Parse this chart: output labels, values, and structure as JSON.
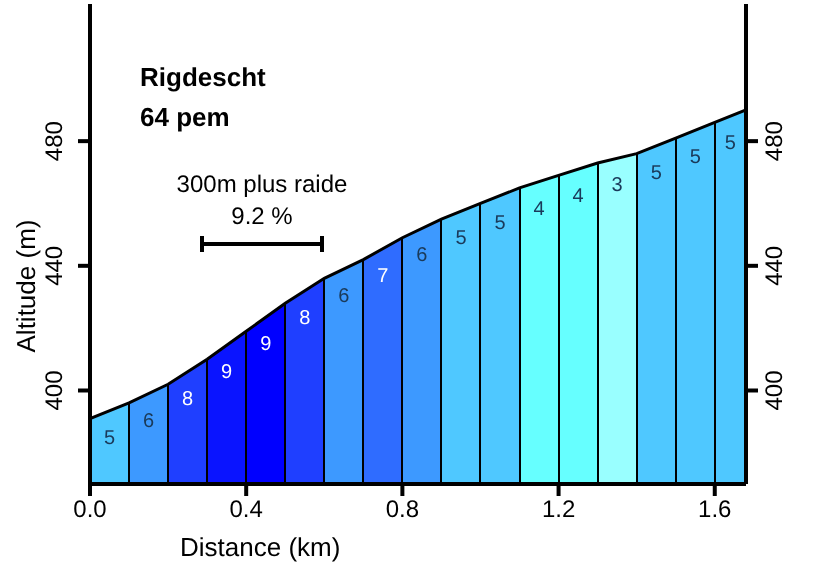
{
  "chart_data": {
    "type": "area",
    "title": "Rigdescht",
    "subtitle": "64 pem",
    "xlabel": "Distance (km)",
    "ylabel": "Altitude (m)",
    "x": [
      0,
      0.1,
      0.2,
      0.3,
      0.4,
      0.5,
      0.6,
      0.7,
      0.8,
      0.9,
      1.0,
      1.1,
      1.2,
      1.3,
      1.4,
      1.5,
      1.6,
      1.68
    ],
    "series": [
      {
        "values": [
          391,
          396,
          402,
          410,
          419,
          428,
          436,
          442,
          449,
          455,
          460,
          465,
          469,
          473,
          476,
          481,
          486,
          490
        ],
        "colors": [
          "#4fc8ff",
          "#3d99ff",
          "#1f3fff",
          "#0a14ff",
          "#0000ff",
          "#1f3fff",
          "#3d99ff",
          "#2f6cff",
          "#3d99ff",
          "#4fc8ff",
          "#4fc8ff",
          "#66ffff",
          "#66ffff",
          "#99ffff",
          "#4fc8ff",
          "#4fc8ff",
          "#4fc8ff",
          "#4fc8ff"
        ]
      }
    ],
    "annotations": [
      "5",
      "6",
      "8",
      "9",
      "9",
      "8",
      "6",
      "7",
      "6",
      "5",
      "5",
      "4",
      "4",
      "3",
      "5",
      "5",
      "5",
      "300m plus raide",
      "9.2 %"
    ],
    "xlim": [
      0,
      1.68
    ],
    "xticks": [
      {
        "value": 0,
        "label": "0.0"
      },
      0.4,
      0.8,
      1.2,
      1.6
    ],
    "ylim": [
      370,
      524
    ],
    "yticks": [
      400,
      440,
      480
    ],
    "y2lim": [
      370,
      524
    ],
    "y2ticks": [
      400,
      440,
      480
    ],
    "grid": false,
    "legend": false
  }
}
